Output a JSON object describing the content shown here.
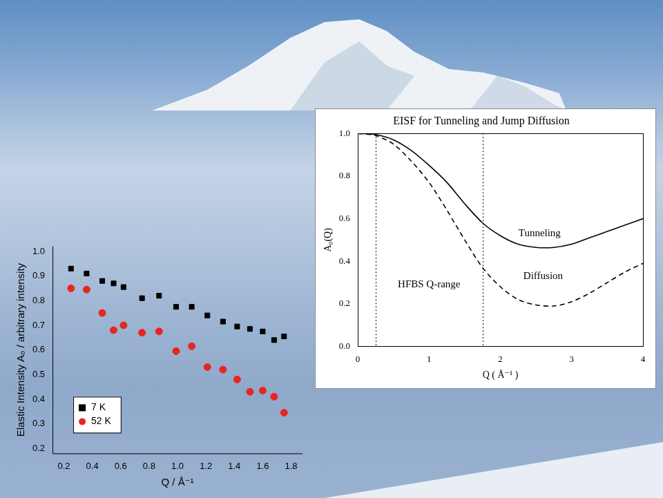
{
  "chart_data": [
    {
      "type": "scatter",
      "x_label": "Q / Å⁻¹",
      "y_label": "Elastic Intensity A₀ / arbitrary intensity",
      "x": [
        0.25,
        0.36,
        0.47,
        0.55,
        0.62,
        0.75,
        0.87,
        0.99,
        1.1,
        1.21,
        1.32,
        1.42,
        1.51,
        1.6,
        1.68,
        1.75
      ],
      "series": [
        {
          "name": "7 K",
          "color": "#000000",
          "marker": "square",
          "values": [
            0.93,
            0.91,
            0.88,
            0.87,
            0.855,
            0.81,
            0.82,
            0.775,
            0.775,
            0.74,
            0.715,
            0.695,
            0.685,
            0.675,
            0.64,
            0.655
          ]
        },
        {
          "name": "52 K",
          "color": "#e8251f",
          "marker": "circle",
          "values": [
            0.85,
            0.845,
            0.75,
            0.68,
            0.7,
            0.67,
            0.675,
            0.595,
            0.615,
            0.53,
            0.52,
            0.48,
            0.43,
            0.435,
            0.41,
            0.345
          ]
        }
      ],
      "xlim": [
        0.12,
        1.88
      ],
      "xticks": [
        0.2,
        0.4,
        0.6,
        0.8,
        {
          "value": 1,
          "label": "1.0"
        },
        1.2,
        1.4,
        1.6,
        1.8
      ],
      "ylim": [
        0.18,
        1.02
      ],
      "yticks": [
        0.2,
        0.3,
        0.4,
        0.5,
        0.6,
        0.7,
        0.8,
        0.9,
        {
          "value": 1,
          "label": "1.0"
        }
      ],
      "grid": false,
      "legend": "lower left"
    },
    {
      "type": "line",
      "title": "EISF for Tunneling and Jump Diffusion",
      "x_label": "Q ( Å⁻¹ )",
      "y_label": "A₀(Q)",
      "x": [
        0,
        0.25,
        0.5,
        0.75,
        1.0,
        1.25,
        1.5,
        1.75,
        2.0,
        2.25,
        2.5,
        2.75,
        3.0,
        3.25,
        3.5,
        3.75,
        4.0
      ],
      "series": [
        {
          "name": "Tunneling",
          "color": "#000000",
          "line_style": "solid",
          "values": [
            1.0,
            0.995,
            0.97,
            0.92,
            0.85,
            0.77,
            0.67,
            0.58,
            0.52,
            0.48,
            0.465,
            0.465,
            0.48,
            0.51,
            0.54,
            0.57,
            0.6
          ]
        },
        {
          "name": "Diffusion",
          "color": "#000000",
          "line_style": "dashed",
          "values": [
            1.0,
            0.99,
            0.95,
            0.87,
            0.77,
            0.64,
            0.5,
            0.37,
            0.28,
            0.22,
            0.195,
            0.19,
            0.21,
            0.25,
            0.3,
            0.35,
            0.39
          ]
        }
      ],
      "xlim": [
        0,
        4
      ],
      "xticks": [
        0,
        1,
        2,
        3,
        4
      ],
      "ylim": [
        0,
        1
      ],
      "yticks": [
        {
          "value": 0,
          "label": "0.0"
        },
        0.2,
        0.4,
        0.6,
        0.8,
        {
          "value": 1,
          "label": "1.0"
        }
      ],
      "grid": false,
      "reference_lines": {
        "x": [
          0.25,
          1.75
        ],
        "line_style": "dotted"
      },
      "annotations": [
        {
          "text": "Tunneling",
          "x": 2.55,
          "y": 0.53
        },
        {
          "text": "Diffusion",
          "x": 2.6,
          "y": 0.33
        },
        {
          "text": "HFBS Q-range",
          "x": 1.0,
          "y": 0.29
        }
      ]
    }
  ]
}
